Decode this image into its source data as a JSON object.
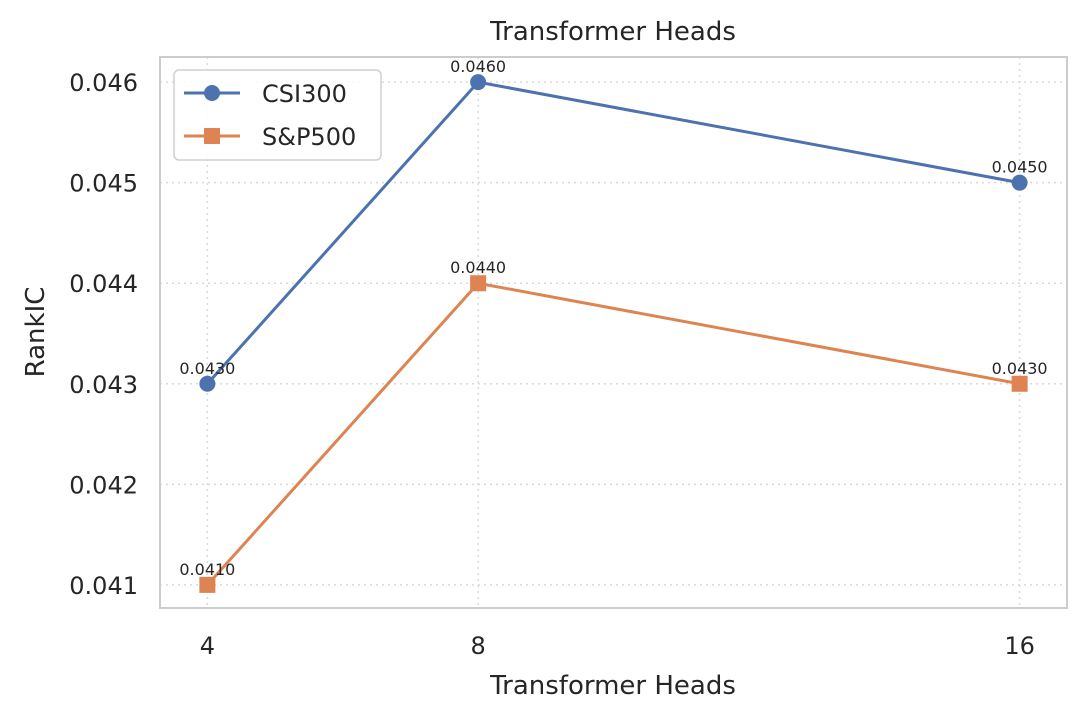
{
  "chart_data": {
    "type": "line",
    "title": "Transformer Heads",
    "xlabel": "Transformer Heads",
    "ylabel": "RankIC",
    "x": [
      4,
      8,
      16
    ],
    "x_tick_labels": [
      "4",
      "8",
      "16"
    ],
    "y_ticks": [
      0.041,
      0.042,
      0.043,
      0.044,
      0.045,
      0.046
    ],
    "y_tick_labels": [
      "0.041",
      "0.042",
      "0.043",
      "0.044",
      "0.045",
      "0.046"
    ],
    "xlim": [
      3.3,
      16.7
    ],
    "ylim": [
      0.04077,
      0.04625
    ],
    "grid": true,
    "legend_position": "upper-left",
    "series": [
      {
        "name": "CSI300",
        "color": "#4c72b0",
        "marker": "circle",
        "values": [
          0.043,
          0.046,
          0.045
        ],
        "labels": [
          "0.0430",
          "0.0460",
          "0.0450"
        ]
      },
      {
        "name": "S&P500",
        "color": "#dd8452",
        "marker": "square",
        "values": [
          0.041,
          0.044,
          0.043
        ],
        "labels": [
          "0.0410",
          "0.0440",
          "0.0430"
        ]
      }
    ]
  }
}
